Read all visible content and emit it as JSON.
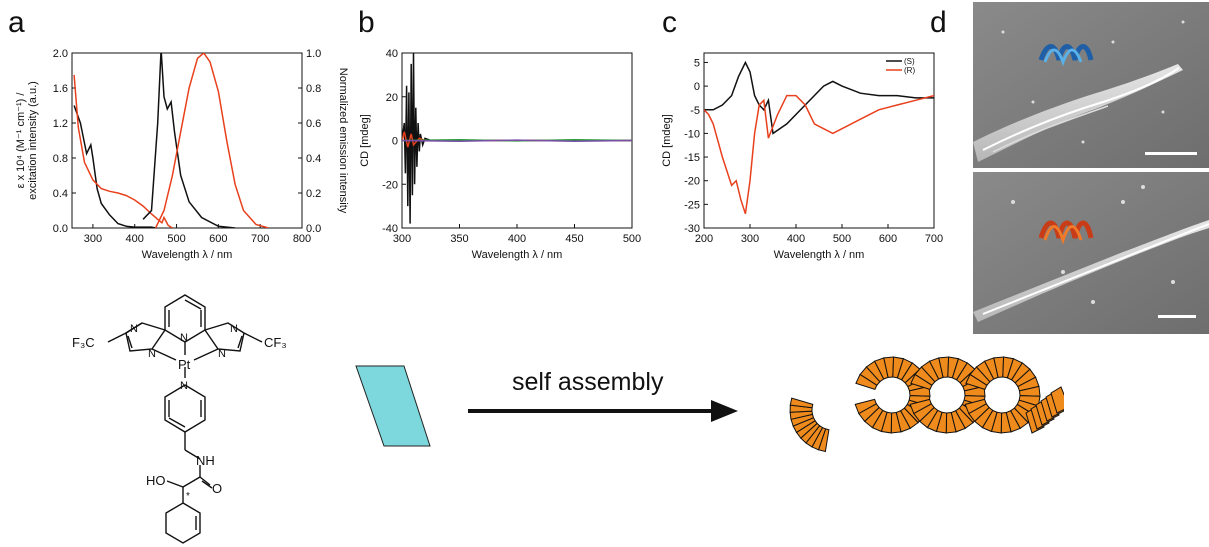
{
  "panels": {
    "a": "a",
    "b": "b",
    "c": "c",
    "d": "d"
  },
  "chart_data": [
    {
      "panel": "a",
      "type": "line",
      "xlabel": "Wavelength λ / nm",
      "ylabel_left_line1": "ε x 10⁴ (M⁻¹ cm⁻¹) /",
      "ylabel_left_line2": "excitation intensity (a.u.)",
      "ylabel_right": "Normalized emission intensity",
      "xlim": [
        250,
        800
      ],
      "ylim": [
        0,
        2.0
      ],
      "ylim_right": [
        0,
        1.0
      ],
      "xticks": [
        "300",
        "400",
        "500",
        "600",
        "700",
        "800"
      ],
      "yticks": [
        "0.0",
        "0.4",
        "0.8",
        "1.2",
        "1.6",
        "2.0"
      ],
      "yticks_right": [
        "0.0",
        "0.2",
        "0.4",
        "0.6",
        "0.8",
        "1.0"
      ],
      "series": [
        {
          "color": "#111111",
          "axis": "left",
          "x": [
            255,
            270,
            285,
            295,
            300,
            310,
            320,
            340,
            360,
            380,
            400,
            420,
            440,
            450
          ],
          "y": [
            1.4,
            1.2,
            0.85,
            0.95,
            0.8,
            0.45,
            0.28,
            0.15,
            0.05,
            0.02,
            0.01,
            0.01,
            0.01,
            0.0
          ]
        },
        {
          "color": "#e8401c",
          "axis": "left",
          "x": [
            255,
            265,
            280,
            300,
            320,
            340,
            360,
            380,
            400,
            420,
            440,
            455,
            465,
            470,
            480,
            490
          ],
          "y": [
            1.75,
            1.15,
            0.75,
            0.55,
            0.45,
            0.42,
            0.4,
            0.37,
            0.32,
            0.25,
            0.16,
            0.1,
            0.06,
            0.12,
            0.03,
            0.0
          ]
        },
        {
          "color": "#111111",
          "axis": "right",
          "x": [
            420,
            440,
            455,
            463,
            470,
            478,
            487,
            495,
            510,
            530,
            560,
            600,
            640
          ],
          "y": [
            0.05,
            0.1,
            0.6,
            1.02,
            0.75,
            0.68,
            0.72,
            0.55,
            0.3,
            0.15,
            0.06,
            0.01,
            0.0
          ]
        },
        {
          "color": "#e8401c",
          "axis": "right",
          "x": [
            450,
            470,
            490,
            510,
            530,
            550,
            565,
            580,
            600,
            620,
            640,
            660,
            690,
            720
          ],
          "y": [
            0.0,
            0.1,
            0.3,
            0.55,
            0.8,
            0.97,
            1.0,
            0.95,
            0.78,
            0.5,
            0.25,
            0.1,
            0.02,
            0.0
          ]
        }
      ]
    },
    {
      "panel": "b",
      "type": "line",
      "xlabel": "Wavelength λ / nm",
      "ylabel": "CD [mdeg]",
      "xlim": [
        300,
        500
      ],
      "ylim": [
        -40,
        40
      ],
      "xticks": [
        "300",
        "350",
        "400",
        "450",
        "500"
      ],
      "yticks": [
        "-40",
        "-20",
        "0",
        "20",
        "40"
      ],
      "series": [
        {
          "color": "#111111",
          "x": [
            300,
            302,
            303,
            304,
            305,
            306,
            307,
            308,
            309,
            310,
            311,
            312,
            313,
            314,
            315,
            316,
            318,
            320,
            325,
            330,
            400,
            500
          ],
          "y": [
            0,
            8,
            -15,
            25,
            -30,
            22,
            -38,
            35,
            -25,
            40,
            -20,
            15,
            -12,
            8,
            -5,
            3,
            -2,
            1,
            0,
            0,
            0,
            0
          ]
        },
        {
          "color": "#e8401c",
          "x": [
            300,
            302,
            305,
            308,
            310,
            315,
            320,
            350,
            400,
            450,
            500
          ],
          "y": [
            0,
            4,
            -3,
            3,
            -2,
            1,
            0,
            0,
            0,
            0,
            0
          ]
        },
        {
          "color": "#2a9a3a",
          "x": [
            300,
            350,
            400,
            450,
            500
          ],
          "y": [
            0,
            0.3,
            -0.2,
            0.3,
            0
          ]
        },
        {
          "color": "#7a4ea8",
          "x": [
            300,
            350,
            400,
            450,
            500
          ],
          "y": [
            0,
            -0.3,
            0.2,
            -0.3,
            0
          ]
        }
      ]
    },
    {
      "panel": "c",
      "type": "line",
      "xlabel": "Wavelength λ / nm",
      "ylabel": "CD [mdeg]",
      "xlim": [
        200,
        700
      ],
      "ylim": [
        -30,
        7
      ],
      "xticks": [
        "200",
        "300",
        "400",
        "500",
        "600",
        "700"
      ],
      "yticks": [
        "5",
        "0",
        "-5",
        "-10",
        "-15",
        "-20",
        "-25",
        "-30"
      ],
      "legend": "top-right",
      "series": [
        {
          "name": "(S)",
          "color": "#111111",
          "x": [
            200,
            220,
            240,
            260,
            275,
            290,
            300,
            310,
            320,
            330,
            340,
            350,
            380,
            420,
            460,
            480,
            500,
            540,
            580,
            620,
            660,
            700
          ],
          "y": [
            -5,
            -5,
            -4,
            -2,
            2,
            5,
            3,
            -2,
            -4,
            -5,
            -3,
            -10,
            -8,
            -4,
            0,
            1,
            0,
            -1.5,
            -2,
            -2,
            -2.5,
            -2.5
          ]
        },
        {
          "name": "(R)",
          "color": "#e8401c",
          "x": [
            200,
            210,
            220,
            240,
            260,
            270,
            280,
            290,
            300,
            310,
            320,
            330,
            340,
            360,
            380,
            400,
            420,
            440,
            460,
            480,
            500,
            540,
            580,
            620,
            660,
            700
          ],
          "y": [
            -5,
            -6,
            -8,
            -15,
            -21,
            -20,
            -24,
            -27,
            -20,
            -10,
            -4,
            -3,
            -11,
            -6,
            -2,
            -2,
            -4,
            -8,
            -9,
            -10,
            -9,
            -7,
            -5,
            -4,
            -3,
            -2
          ]
        }
      ]
    }
  ],
  "scheme": {
    "ligand_left": "F₃C",
    "ligand_right": "CF₃",
    "metal": "Pt",
    "amine": "NH",
    "hydroxyl": "HO",
    "carbonyl_o": "O",
    "stereo": "*",
    "n": "N",
    "arrow_label": "self assembly"
  },
  "colors": {
    "black": "#111111",
    "red": "#e8401c",
    "parallelogram": "#7dd8de",
    "helix": "#ef8a1c",
    "sem_bg": "#7a7a7a",
    "blue_helix": "#2d6fb8",
    "orange_helix": "#e36b1d"
  }
}
